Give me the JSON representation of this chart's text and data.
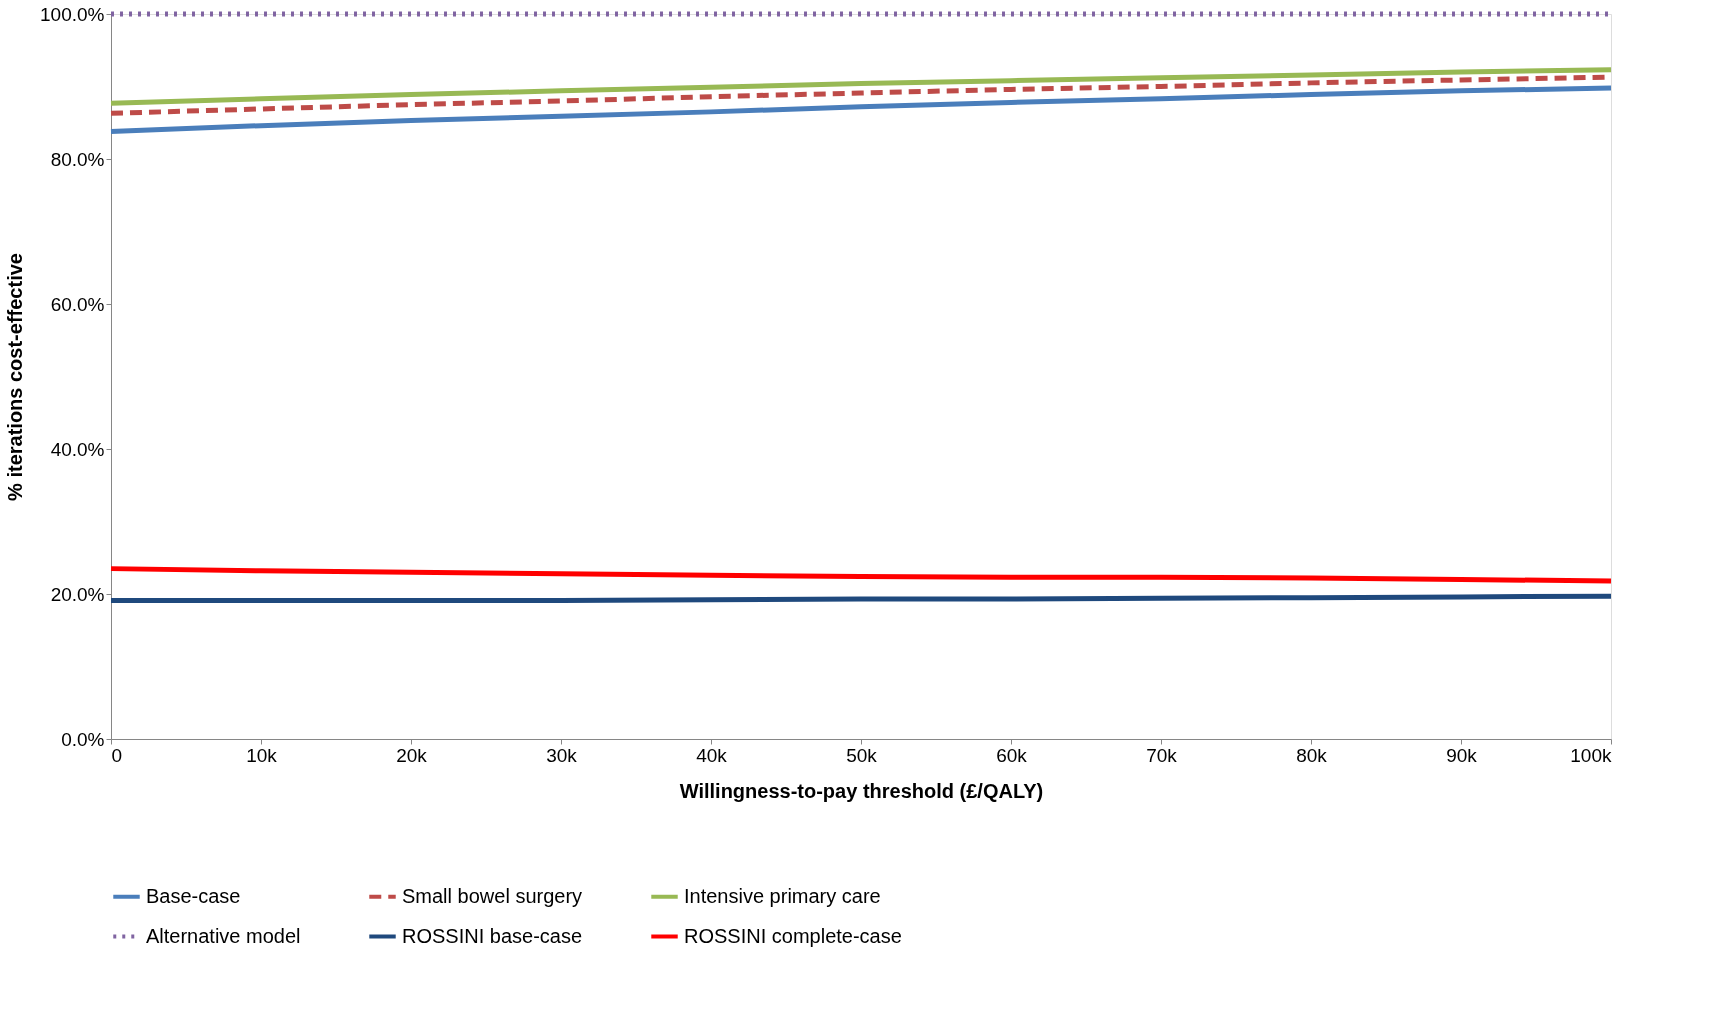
{
  "chart_data": {
    "type": "line",
    "xlabel": "Willingness-to-pay threshold (£/QALY)",
    "ylabel": "% iterations cost-effective",
    "x": [
      0,
      10000,
      20000,
      30000,
      40000,
      50000,
      60000,
      70000,
      80000,
      90000,
      100000
    ],
    "series": [
      {
        "name": "Base-case",
        "color": "#4a7ebb",
        "line_style": "solid",
        "values": [
          83.8,
          84.6,
          85.3,
          85.9,
          86.5,
          87.2,
          87.8,
          88.3,
          88.9,
          89.4,
          89.8
        ]
      },
      {
        "name": "Small bowel surgery",
        "color": "#be4b48",
        "line_style": "dashed",
        "values": [
          86.3,
          86.9,
          87.5,
          88.0,
          88.6,
          89.1,
          89.6,
          90.0,
          90.5,
          90.9,
          91.3
        ]
      },
      {
        "name": "Intensive primary care",
        "color": "#98b954",
        "line_style": "solid",
        "values": [
          87.7,
          88.3,
          88.9,
          89.4,
          89.9,
          90.4,
          90.8,
          91.2,
          91.6,
          92.0,
          92.3
        ]
      },
      {
        "name": "Alternative model",
        "color": "#8064a2",
        "line_style": "dotted",
        "values": [
          100,
          100,
          100,
          100,
          100,
          100,
          100,
          100,
          100,
          100,
          100
        ]
      },
      {
        "name": "ROSSINI base-case",
        "color": "#1f497d",
        "line_style": "solid",
        "values": [
          19.1,
          19.1,
          19.1,
          19.1,
          19.2,
          19.3,
          19.3,
          19.4,
          19.5,
          19.6,
          19.7
        ]
      },
      {
        "name": "ROSSINI complete-case",
        "color": "#ff0000",
        "line_style": "solid",
        "values": [
          23.5,
          23.2,
          23.0,
          22.8,
          22.6,
          22.4,
          22.3,
          22.3,
          22.2,
          22.0,
          21.8
        ]
      }
    ],
    "xlim": [
      0,
      100000
    ],
    "xticks": [
      0,
      {
        "value": 10000,
        "label": "10k"
      },
      {
        "value": 20000,
        "label": "20k"
      },
      {
        "value": 30000,
        "label": "30k"
      },
      {
        "value": 40000,
        "label": "40k"
      },
      {
        "value": 50000,
        "label": "50k"
      },
      {
        "value": 60000,
        "label": "60k"
      },
      {
        "value": 70000,
        "label": "70k"
      },
      {
        "value": 80000,
        "label": "80k"
      },
      {
        "value": 90000,
        "label": "90k"
      },
      {
        "value": 100000,
        "label": "100k"
      }
    ],
    "ylim": [
      0,
      100
    ],
    "yticks": [
      {
        "value": 0,
        "label": "0.0%"
      },
      {
        "value": 20,
        "label": "20.0%"
      },
      {
        "value": 40,
        "label": "40.0%"
      },
      {
        "value": 60,
        "label": "60.0%"
      },
      {
        "value": 80,
        "label": "80.0%"
      },
      {
        "value": 100,
        "label": "100.0%"
      }
    ],
    "grid": false,
    "legend": "bottom",
    "marker": "none"
  }
}
